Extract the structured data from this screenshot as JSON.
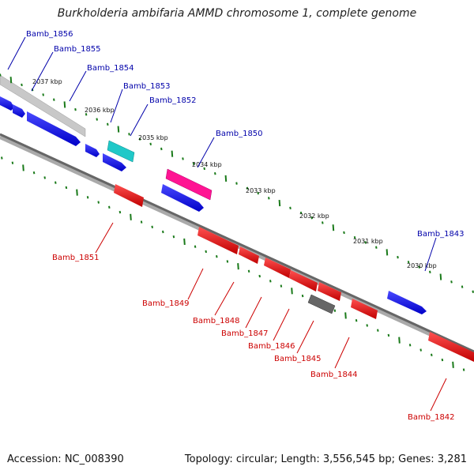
{
  "title": "Burkholderia ambifaria AMMD chromosome 1, complete genome",
  "footer": {
    "accession": "Accession: NC_008390",
    "summary": "Topology: circular; Length: 3,556,545 bp; Genes: 3,281"
  },
  "colors": {
    "forward_gene": "#0000ff",
    "reverse_gene": "#ff0000",
    "forward_label": "#0000aa",
    "reverse_label": "#cc0000",
    "highlight_pink": "#ff1493",
    "highlight_cyan": "#20c8c8",
    "gray_gene": "#666666",
    "tick_green": "#1a7a1a"
  },
  "scale_ticks": [
    "2037 kbp",
    "2036 kbp",
    "2035 kbp",
    "2034 kbp",
    "2033 kbp",
    "2032 kbp",
    "2031 kbp",
    "2030 kbp"
  ],
  "forward_genes": [
    "Bamb_1856",
    "Bamb_1855",
    "Bamb_1854",
    "Bamb_1853",
    "Bamb_1852",
    "Bamb_1850",
    "Bamb_1843"
  ],
  "reverse_genes": [
    "Bamb_1851",
    "Bamb_1849",
    "Bamb_1848",
    "Bamb_1847",
    "Bamb_1846",
    "Bamb_1845",
    "Bamb_1844",
    "Bamb_1842"
  ]
}
